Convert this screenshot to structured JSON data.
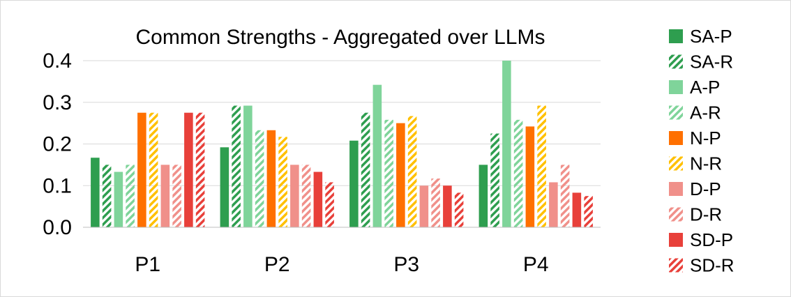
{
  "chart_data": {
    "type": "bar",
    "title": "Common Strengths - Aggregated over LLMs",
    "xlabel": "",
    "ylabel": "",
    "ylim": [
      0,
      0.4
    ],
    "yticks": [
      "0.0",
      "0.1",
      "0.2",
      "0.3",
      "0.4"
    ],
    "grid": true,
    "legend_position": "right",
    "categories": [
      "P1",
      "P2",
      "P3",
      "P4"
    ],
    "series": [
      {
        "name": "SA-P",
        "color": "#2e9e4f",
        "pattern": "solid",
        "values": [
          0.167,
          0.192,
          0.208,
          0.15
        ]
      },
      {
        "name": "SA-R",
        "color": "#2e9e4f",
        "pattern": "hatched",
        "values": [
          0.15,
          0.292,
          0.275,
          0.225
        ]
      },
      {
        "name": "A-P",
        "color": "#7fd49a",
        "pattern": "solid",
        "values": [
          0.133,
          0.292,
          0.342,
          0.4
        ]
      },
      {
        "name": "A-R",
        "color": "#7fd49a",
        "pattern": "hatched",
        "values": [
          0.15,
          0.233,
          0.258,
          0.258
        ]
      },
      {
        "name": "N-P",
        "color": "#ff7000",
        "pattern": "solid",
        "values": [
          0.275,
          0.233,
          0.25,
          0.242
        ]
      },
      {
        "name": "N-R",
        "color": "#ffc000",
        "pattern": "hatched",
        "values": [
          0.275,
          0.217,
          0.267,
          0.292
        ]
      },
      {
        "name": "D-P",
        "color": "#f0908a",
        "pattern": "solid",
        "values": [
          0.15,
          0.15,
          0.1,
          0.108
        ]
      },
      {
        "name": "D-R",
        "color": "#f0908a",
        "pattern": "hatched",
        "values": [
          0.15,
          0.15,
          0.117,
          0.15
        ]
      },
      {
        "name": "SD-P",
        "color": "#e8403a",
        "pattern": "solid",
        "values": [
          0.275,
          0.133,
          0.1,
          0.083
        ]
      },
      {
        "name": "SD-R",
        "color": "#e8403a",
        "pattern": "hatched",
        "values": [
          0.275,
          0.108,
          0.083,
          0.075
        ]
      }
    ]
  }
}
